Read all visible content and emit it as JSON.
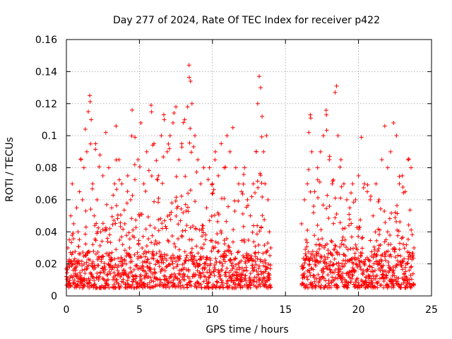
{
  "chart_data": {
    "type": "scatter",
    "title": "Day 277 of 2024, Rate Of TEC Index for receiver p422",
    "xlabel": "GPS time / hours",
    "ylabel": "ROTI / TECUs",
    "xlim": [
      0,
      25
    ],
    "ylim": [
      0,
      0.16
    ],
    "xticks": [
      0,
      5,
      10,
      15,
      20,
      25
    ],
    "xtick_labels": [
      "0",
      "5",
      "10",
      "15",
      "20",
      "25"
    ],
    "yticks": [
      0,
      0.02,
      0.04,
      0.06,
      0.08,
      0.1,
      0.12,
      0.14,
      0.16
    ],
    "ytick_labels": [
      "0",
      "0.02",
      "0.04",
      "0.06",
      "0.08",
      "0.1",
      "0.12",
      "0.14",
      "0.16"
    ],
    "grid": true,
    "marker": "+",
    "color": "#ff0000",
    "data_gap_hours": [
      14.1,
      16.0
    ],
    "series": [
      {
        "name": "ROTI",
        "points": [
          [
            0.0,
            0.012
          ],
          [
            0.1,
            0.03
          ],
          [
            0.2,
            0.035
          ],
          [
            0.3,
            0.05
          ],
          [
            0.4,
            0.07
          ],
          [
            0.5,
            0.045
          ],
          [
            0.6,
            0.02
          ],
          [
            0.7,
            0.055
          ],
          [
            0.8,
            0.04
          ],
          [
            0.9,
            0.065
          ],
          [
            1.0,
            0.085
          ],
          [
            1.1,
            0.06
          ],
          [
            1.2,
            0.08
          ],
          [
            1.3,
            0.104
          ],
          [
            1.4,
            0.09
          ],
          [
            1.5,
            0.115
          ],
          [
            1.6,
            0.125
          ],
          [
            1.7,
            0.11
          ],
          [
            1.8,
            0.07
          ],
          [
            1.9,
            0.05
          ],
          [
            2.0,
            0.095
          ],
          [
            2.1,
            0.06
          ],
          [
            2.3,
            0.088
          ],
          [
            2.5,
            0.075
          ],
          [
            2.7,
            0.102
          ],
          [
            2.9,
            0.08
          ],
          [
            3.1,
            0.055
          ],
          [
            3.3,
            0.07
          ],
          [
            3.4,
            0.106
          ],
          [
            3.6,
            0.085
          ],
          [
            3.8,
            0.07
          ],
          [
            4.0,
            0.045
          ],
          [
            4.2,
            0.075
          ],
          [
            4.4,
            0.06
          ],
          [
            4.5,
            0.116
          ],
          [
            4.7,
            0.099
          ],
          [
            4.9,
            0.085
          ],
          [
            5.1,
            0.108
          ],
          [
            5.3,
            0.07
          ],
          [
            5.5,
            0.09
          ],
          [
            5.8,
            0.119
          ],
          [
            6.0,
            0.095
          ],
          [
            6.3,
            0.075
          ],
          [
            6.5,
            0.1
          ],
          [
            6.7,
            0.11
          ],
          [
            6.9,
            0.09
          ],
          [
            7.1,
            0.1
          ],
          [
            7.3,
            0.108
          ],
          [
            7.5,
            0.118
          ],
          [
            7.7,
            0.085
          ],
          [
            7.9,
            0.095
          ],
          [
            8.1,
            0.11
          ],
          [
            8.3,
            0.118
          ],
          [
            8.4,
            0.144
          ],
          [
            8.5,
            0.134
          ],
          [
            8.6,
            0.12
          ],
          [
            8.8,
            0.1
          ],
          [
            9.0,
            0.085
          ],
          [
            9.2,
            0.07
          ],
          [
            9.4,
            0.08
          ],
          [
            9.6,
            0.055
          ],
          [
            9.8,
            0.08
          ],
          [
            10.0,
            0.07
          ],
          [
            10.2,
            0.09
          ],
          [
            10.4,
            0.075
          ],
          [
            10.6,
            0.095
          ],
          [
            10.8,
            0.08
          ],
          [
            11.0,
            0.1
          ],
          [
            11.2,
            0.09
          ],
          [
            11.4,
            0.105
          ],
          [
            11.6,
            0.08
          ],
          [
            11.8,
            0.07
          ],
          [
            12.0,
            0.065
          ],
          [
            12.2,
            0.08
          ],
          [
            12.4,
            0.06
          ],
          [
            12.6,
            0.05
          ],
          [
            12.8,
            0.07
          ],
          [
            13.0,
            0.09
          ],
          [
            13.1,
            0.12
          ],
          [
            13.2,
            0.137
          ],
          [
            13.3,
            0.13
          ],
          [
            13.4,
            0.112
          ],
          [
            13.5,
            0.09
          ],
          [
            13.6,
            0.07
          ],
          [
            13.7,
            0.1
          ],
          [
            13.8,
            0.06
          ],
          [
            13.9,
            0.04
          ],
          [
            14.0,
            0.03
          ],
          [
            16.1,
            0.045
          ],
          [
            16.3,
            0.06
          ],
          [
            16.5,
            0.07
          ],
          [
            16.6,
            0.102
          ],
          [
            16.7,
            0.113
          ],
          [
            16.8,
            0.09
          ],
          [
            17.0,
            0.065
          ],
          [
            17.2,
            0.08
          ],
          [
            17.4,
            0.09
          ],
          [
            17.6,
            0.1
          ],
          [
            17.8,
            0.113
          ],
          [
            18.0,
            0.085
          ],
          [
            18.2,
            0.07
          ],
          [
            18.4,
            0.127
          ],
          [
            18.5,
            0.131
          ],
          [
            18.6,
            0.1
          ],
          [
            18.8,
            0.085
          ],
          [
            19.0,
            0.07
          ],
          [
            19.2,
            0.06
          ],
          [
            19.4,
            0.055
          ],
          [
            19.6,
            0.07
          ],
          [
            19.8,
            0.06
          ],
          [
            20.0,
            0.075
          ],
          [
            20.2,
            0.099
          ],
          [
            20.4,
            0.07
          ],
          [
            20.6,
            0.065
          ],
          [
            20.8,
            0.06
          ],
          [
            21.0,
            0.05
          ],
          [
            21.2,
            0.07
          ],
          [
            21.4,
            0.06
          ],
          [
            21.6,
            0.085
          ],
          [
            21.8,
            0.106
          ],
          [
            22.0,
            0.08
          ],
          [
            22.2,
            0.09
          ],
          [
            22.4,
            0.108
          ],
          [
            22.6,
            0.1
          ],
          [
            22.8,
            0.07
          ],
          [
            23.0,
            0.075
          ],
          [
            23.2,
            0.065
          ],
          [
            23.4,
            0.085
          ],
          [
            23.6,
            0.08
          ],
          [
            23.8,
            0.03
          ]
        ]
      }
    ]
  }
}
